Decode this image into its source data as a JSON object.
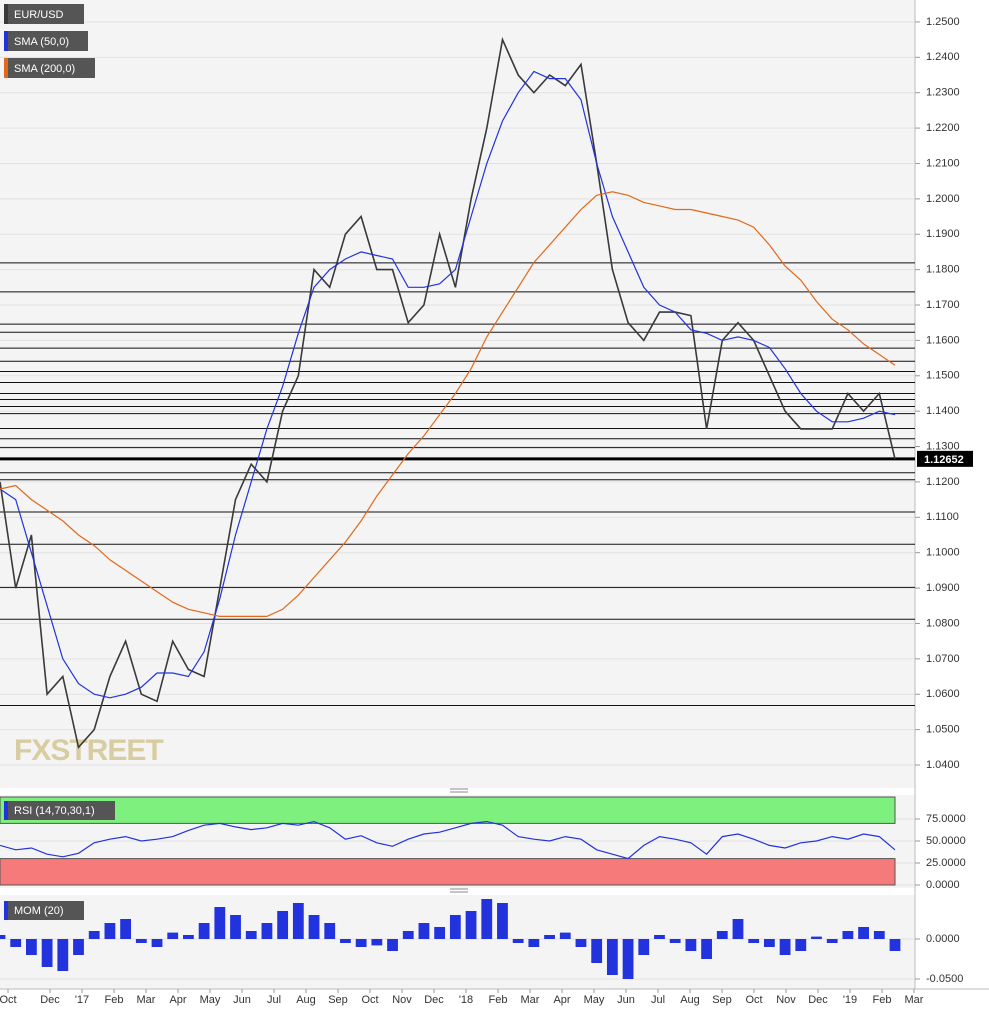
{
  "chart_data": [
    {
      "type": "line",
      "series": [
        {
          "name": "EUR/USD",
          "color": "#3a3a3a",
          "values": [
            1.12,
            1.09,
            1.105,
            1.06,
            1.065,
            1.045,
            1.05,
            1.065,
            1.075,
            1.06,
            1.058,
            1.075,
            1.067,
            1.065,
            1.09,
            1.115,
            1.125,
            1.12,
            1.14,
            1.15,
            1.18,
            1.175,
            1.19,
            1.195,
            1.18,
            1.18,
            1.165,
            1.17,
            1.19,
            1.175,
            1.2,
            1.22,
            1.245,
            1.235,
            1.23,
            1.235,
            1.232,
            1.238,
            1.21,
            1.18,
            1.165,
            1.16,
            1.168,
            1.168,
            1.167,
            1.135,
            1.16,
            1.165,
            1.16,
            1.15,
            1.14,
            1.135,
            1.135,
            1.135,
            1.145,
            1.14,
            1.145,
            1.1265
          ]
        },
        {
          "name": "SMA (50,0)",
          "color": "#2233dd",
          "values": [
            1.118,
            1.115,
            1.1,
            1.085,
            1.07,
            1.063,
            1.06,
            1.059,
            1.06,
            1.062,
            1.066,
            1.066,
            1.065,
            1.072,
            1.087,
            1.105,
            1.12,
            1.135,
            1.147,
            1.162,
            1.175,
            1.18,
            1.183,
            1.185,
            1.184,
            1.183,
            1.175,
            1.175,
            1.176,
            1.18,
            1.195,
            1.21,
            1.222,
            1.23,
            1.236,
            1.234,
            1.234,
            1.228,
            1.21,
            1.195,
            1.185,
            1.175,
            1.17,
            1.168,
            1.163,
            1.162,
            1.16,
            1.161,
            1.16,
            1.158,
            1.152,
            1.145,
            1.14,
            1.137,
            1.137,
            1.138,
            1.14,
            1.139
          ]
        },
        {
          "name": "SMA (200,0)",
          "color": "#e0691a",
          "values": [
            1.118,
            1.119,
            1.115,
            1.112,
            1.109,
            1.105,
            1.102,
            1.098,
            1.095,
            1.092,
            1.089,
            1.086,
            1.084,
            1.083,
            1.082,
            1.082,
            1.082,
            1.082,
            1.084,
            1.088,
            1.093,
            1.098,
            1.103,
            1.109,
            1.116,
            1.122,
            1.128,
            1.133,
            1.139,
            1.145,
            1.152,
            1.161,
            1.168,
            1.175,
            1.182,
            1.187,
            1.192,
            1.197,
            1.201,
            1.202,
            1.201,
            1.199,
            1.198,
            1.197,
            1.197,
            1.196,
            1.195,
            1.194,
            1.192,
            1.187,
            1.181,
            1.177,
            1.171,
            1.166,
            1.163,
            1.159,
            1.156,
            1.153
          ]
        }
      ],
      "levels": [
        1.1819,
        1.1737,
        1.1646,
        1.1623,
        1.1578,
        1.1541,
        1.1512,
        1.1481,
        1.145,
        1.1433,
        1.1413,
        1.1393,
        1.1351,
        1.1322,
        1.1297,
        1.1226,
        1.1206,
        1.1115,
        1.1024,
        1.0902,
        1.0812,
        1.0568
      ],
      "last_value": 1.12652,
      "watermark": "FXSTREET",
      "ylim": [
        1.0335,
        1.2562
      ],
      "yticks": [
        {
          "value": 1.04,
          "label": "1.0400"
        },
        {
          "value": 1.05,
          "label": "1.0500"
        },
        {
          "value": 1.06,
          "label": "1.0600"
        },
        {
          "value": 1.07,
          "label": "1.0700"
        },
        {
          "value": 1.08,
          "label": "1.0800"
        },
        {
          "value": 1.09,
          "label": "1.0900"
        },
        {
          "value": 1.1,
          "label": "1.1000"
        },
        {
          "value": 1.11,
          "label": "1.1100"
        },
        {
          "value": 1.12,
          "label": "1.1200"
        },
        {
          "value": 1.13,
          "label": "1.1300"
        },
        {
          "value": 1.14,
          "label": "1.1400"
        },
        {
          "value": 1.15,
          "label": "1.1500"
        },
        {
          "value": 1.16,
          "label": "1.1600"
        },
        {
          "value": 1.17,
          "label": "1.1700"
        },
        {
          "value": 1.18,
          "label": "1.1800"
        },
        {
          "value": 1.19,
          "label": "1.1900"
        },
        {
          "value": 1.2,
          "label": "1.2000"
        },
        {
          "value": 1.21,
          "label": "1.2100"
        },
        {
          "value": 1.22,
          "label": "1.2200"
        },
        {
          "value": 1.23,
          "label": "1.2300"
        },
        {
          "value": 1.24,
          "label": "1.2400"
        },
        {
          "value": 1.25,
          "label": "1.2500"
        }
      ],
      "grid": true
    },
    {
      "type": "line",
      "title": "RSI (14,70,30,1)",
      "overbought": 70,
      "oversold": 30,
      "series": [
        {
          "color": "#2233dd",
          "values": [
            45,
            40,
            42,
            35,
            32,
            36,
            48,
            52,
            55,
            50,
            52,
            55,
            62,
            68,
            70,
            66,
            63,
            65,
            70,
            68,
            72,
            65,
            52,
            56,
            48,
            44,
            52,
            58,
            60,
            65,
            70,
            72,
            68,
            55,
            52,
            50,
            55,
            52,
            40,
            35,
            30,
            45,
            55,
            52,
            48,
            35,
            55,
            58,
            52,
            45,
            42,
            48,
            50,
            55,
            52,
            58,
            55,
            40
          ]
        }
      ],
      "ylim": [
        0,
        100
      ],
      "yticks": [
        {
          "value": 0,
          "label": "0.0000"
        },
        {
          "value": 25,
          "label": "25.0000"
        },
        {
          "value": 50,
          "label": "50.0000"
        },
        {
          "value": 75,
          "label": "75.0000"
        }
      ],
      "grid": true
    },
    {
      "type": "bar",
      "title": "MOM (20)",
      "color": "#2233dd",
      "values": [
        0.005,
        -0.01,
        -0.02,
        -0.035,
        -0.04,
        -0.02,
        0.01,
        0.02,
        0.025,
        -0.005,
        -0.01,
        0.008,
        0.005,
        0.02,
        0.04,
        0.03,
        0.01,
        0.02,
        0.035,
        0.045,
        0.03,
        0.02,
        -0.005,
        -0.01,
        -0.008,
        -0.015,
        0.01,
        0.02,
        0.015,
        0.03,
        0.035,
        0.05,
        0.045,
        -0.005,
        -0.01,
        0.005,
        0.008,
        -0.01,
        -0.03,
        -0.045,
        -0.05,
        -0.02,
        0.005,
        -0.005,
        -0.015,
        -0.025,
        0.01,
        0.025,
        -0.005,
        -0.01,
        -0.02,
        -0.015,
        0.003,
        -0.005,
        0.01,
        0.015,
        0.01,
        -0.015
      ],
      "ylim": [
        -0.06,
        0.0525
      ],
      "yticks": [
        {
          "value": -0.05,
          "label": "-0.0500"
        },
        {
          "value": 0,
          "label": "0.0000"
        }
      ],
      "x_labels": [
        "Oct",
        null,
        "Dec",
        "'17",
        "Feb",
        "Mar",
        "Apr",
        "May",
        "Jun",
        "Jul",
        "Aug",
        "Sep",
        "Oct",
        "Nov",
        "Dec",
        "'18",
        "Feb",
        "Mar",
        "Apr",
        "May",
        "Jun",
        "Jul",
        "Aug",
        "Sep",
        "Oct",
        "Nov",
        "Dec",
        "'19",
        "Feb",
        "Mar"
      ],
      "grid": true
    }
  ]
}
